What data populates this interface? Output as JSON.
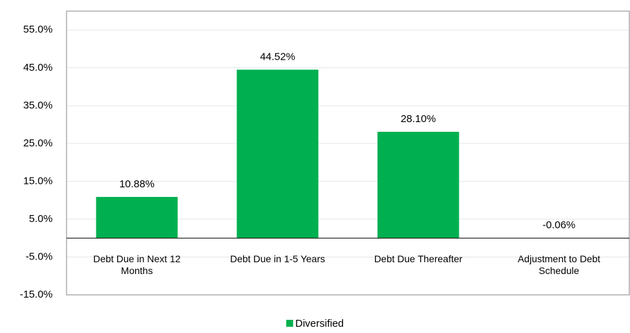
{
  "chart_data": {
    "type": "bar",
    "categories": [
      "Debt Due in Next 12 Months",
      "Debt Due in 1-5 Years",
      "Debt Due Thereafter",
      "Adjustment to Debt Schedule"
    ],
    "series": [
      {
        "name": "Diversified",
        "color": "#00b050",
        "values": [
          10.88,
          44.52,
          28.1,
          -0.06
        ],
        "value_labels": [
          "10.88%",
          "44.52%",
          "28.10%",
          "-0.06%"
        ]
      }
    ],
    "ylim": [
      -15,
      60
    ],
    "yticks": [
      {
        "value": -15,
        "label": "-15.0%"
      },
      {
        "value": -5,
        "label": "-5.0%"
      },
      {
        "value": 5,
        "label": "5.0%"
      },
      {
        "value": 15,
        "label": "15.0%"
      },
      {
        "value": 25,
        "label": "25.0%"
      },
      {
        "value": 35,
        "label": "35.0%"
      },
      {
        "value": 45,
        "label": "45.0%"
      },
      {
        "value": 55,
        "label": "55.0%"
      }
    ],
    "grid": true,
    "legend": "bottom"
  }
}
